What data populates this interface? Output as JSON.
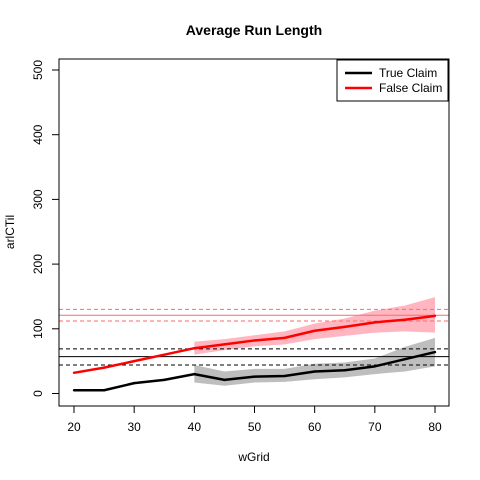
{
  "chart_data": {
    "type": "line",
    "title": "Average Run Length",
    "xlabel": "wGrid",
    "ylabel": "arlCTil",
    "xlim": [
      20,
      80
    ],
    "ylim": [
      0,
      500
    ],
    "x_ticks": [
      20,
      30,
      40,
      50,
      60,
      70,
      80
    ],
    "y_ticks": [
      0,
      100,
      200,
      300,
      400,
      500
    ],
    "grid": false,
    "legend_position": "top-right",
    "series": [
      {
        "name": "True Claim",
        "color": "#000000",
        "band_color": "#bebebe",
        "x": [
          20,
          25,
          30,
          35,
          40,
          45,
          50,
          55,
          60,
          65,
          70,
          75,
          80
        ],
        "y": [
          5,
          5,
          16,
          21,
          30,
          21,
          26,
          27,
          34,
          36,
          42,
          53,
          64
        ],
        "band_x": [
          40,
          45,
          50,
          55,
          60,
          65,
          70,
          75,
          80
        ],
        "band_lower": [
          17,
          12,
          17,
          18,
          22,
          25,
          30,
          34,
          42
        ],
        "band_upper": [
          44,
          34,
          38,
          38,
          46,
          48,
          54,
          72,
          86
        ],
        "hline": 57,
        "hline_dashed": [
          44,
          69
        ]
      },
      {
        "name": "False Claim",
        "color": "#ff0000",
        "band_color": "#ffb6c1",
        "x": [
          20,
          25,
          30,
          35,
          40,
          45,
          50,
          55,
          60,
          65,
          70,
          75,
          80
        ],
        "y": [
          32,
          40,
          50,
          60,
          70,
          76,
          82,
          86,
          97,
          103,
          110,
          114,
          120
        ],
        "band_x": [
          40,
          45,
          50,
          55,
          60,
          65,
          70,
          75,
          80
        ],
        "band_lower": [
          60,
          67,
          73,
          76,
          84,
          89,
          94,
          96,
          94
        ],
        "band_upper": [
          80,
          84,
          90,
          96,
          108,
          116,
          128,
          136,
          149
        ],
        "hline": 121,
        "hline_dashed": [
          112,
          130
        ]
      }
    ]
  }
}
